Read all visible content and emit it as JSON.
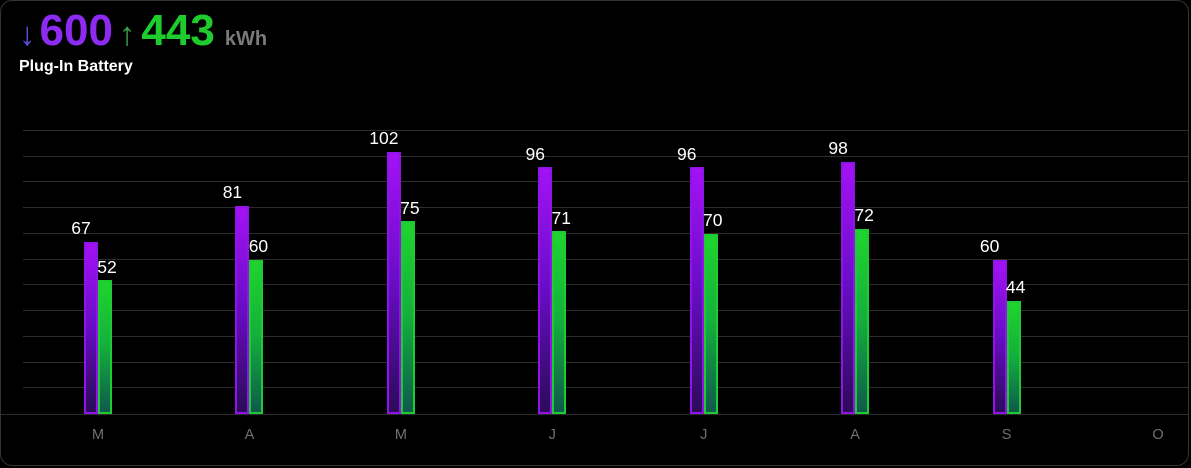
{
  "card": {
    "title": "Plug-In Battery",
    "unit": "kWh",
    "down_arrow_glyph": "↓",
    "up_arrow_glyph": "↑",
    "consumed_total": "600",
    "generated_total": "443",
    "colors": {
      "background": "#000000",
      "card_border": "#333333",
      "consumed_arrow": "#5b4fd8",
      "consumed_accent": "#8e2bf2",
      "generated_arrow": "#3aa24c",
      "generated_accent": "#1fcc2e",
      "unit_text": "#7a7a7a",
      "gridline": "#2d2d2d",
      "axis_label": "#707070",
      "value_label": "#ffffff"
    }
  },
  "chart_data": {
    "type": "bar",
    "categories": [
      "M",
      "A",
      "M",
      "J",
      "J",
      "A",
      "S",
      "O"
    ],
    "series": [
      {
        "name": "consumed",
        "values": [
          67,
          81,
          102,
          96,
          96,
          98,
          60,
          null
        ],
        "color_top": "#a312f5",
        "color_mid": "#6a0dc8",
        "color_bottom": "#2c0b58",
        "border_color": "#9013e8"
      },
      {
        "name": "generated",
        "values": [
          52,
          60,
          75,
          71,
          70,
          72,
          44,
          null
        ],
        "color_top": "#1fd42e",
        "color_mid": "#14b03c",
        "color_bottom": "#0f5a4c",
        "border_color": "#1ecb33"
      }
    ],
    "title": "",
    "xlabel": "",
    "ylabel": "",
    "ylim": [
      0,
      110
    ],
    "grid_step": 10,
    "grid": true,
    "legend_position": "none",
    "value_labels": true
  }
}
